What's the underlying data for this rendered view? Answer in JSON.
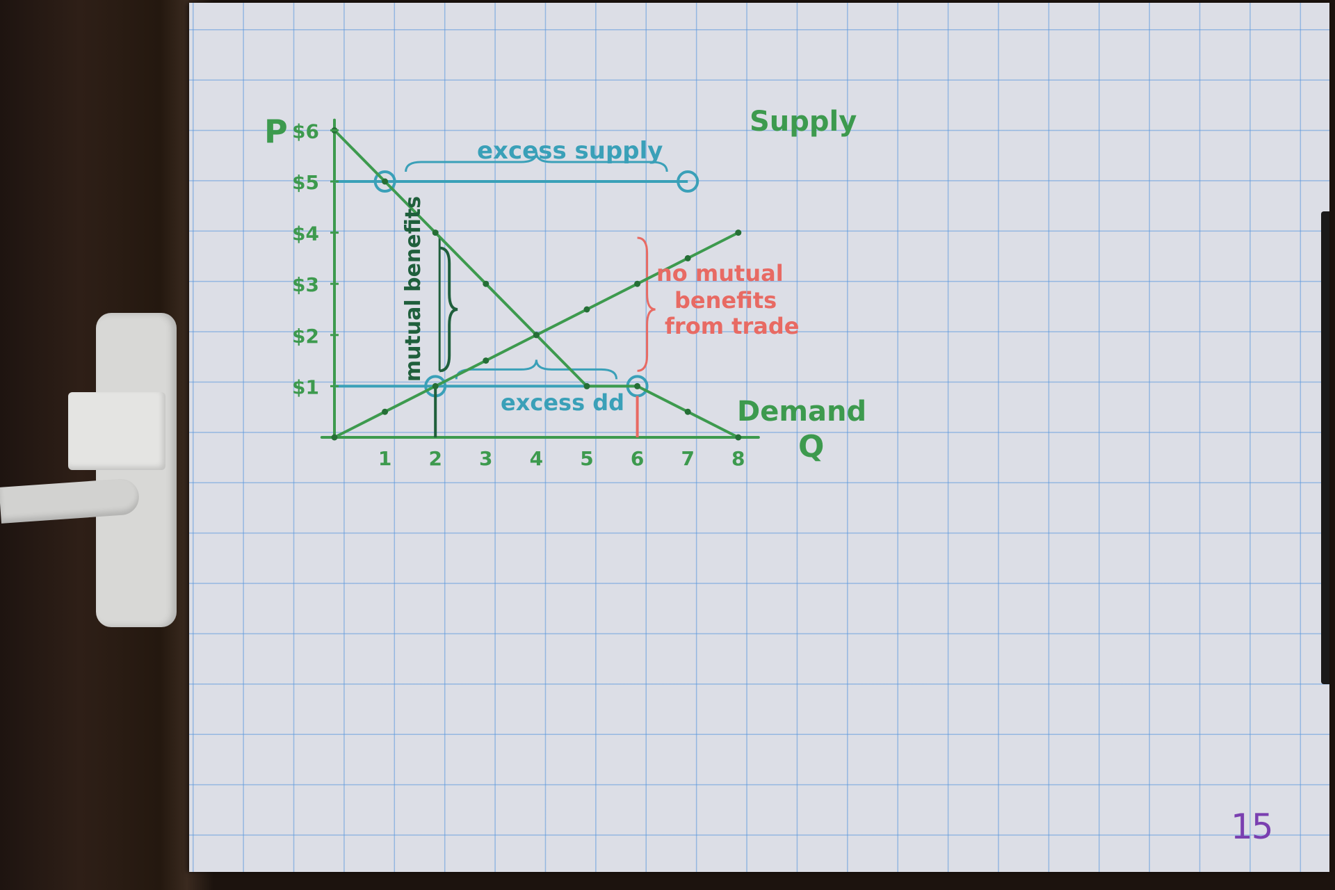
{
  "chart_data": {
    "type": "line",
    "x_axis": {
      "label": "Q",
      "ticks": [
        1,
        2,
        3,
        4,
        5,
        6,
        7,
        8
      ],
      "range": [
        0,
        8
      ]
    },
    "y_axis": {
      "label": "P",
      "ticks": [
        "$1",
        "$2",
        "$3",
        "$4",
        "$5",
        "$6"
      ],
      "range": [
        0,
        6
      ]
    },
    "series": [
      {
        "name": "Supply",
        "x": [
          0,
          1,
          2,
          3,
          4,
          5,
          6,
          7,
          8
        ],
        "y": [
          0,
          0.5,
          1,
          1.5,
          2,
          2.5,
          3,
          3.5,
          4.0
        ]
      },
      {
        "name": "Demand",
        "x": [
          0,
          1,
          2,
          3,
          4,
          5,
          6,
          7,
          8
        ],
        "y": [
          6,
          5,
          4,
          3,
          2,
          1,
          1,
          0.5,
          0
        ]
      }
    ],
    "price_lines": [
      {
        "price": 5,
        "q_from": 1,
        "q_to": 7,
        "label": "excess supply"
      },
      {
        "price": 1,
        "q_from": 2,
        "q_to": 6,
        "label": "excess dd"
      }
    ],
    "quantity_markers": [
      {
        "q": 2,
        "label": "mutual benefits",
        "color": "#1f5f3c"
      },
      {
        "q": 6,
        "label": "no mutual benefits from trade",
        "color": "#e86a63"
      }
    ],
    "equilibrium": {
      "q": 4,
      "p": 2
    },
    "colors": {
      "supply_demand": "#3d9a4e",
      "price_lines": "#3aa0b8",
      "mutual": "#1f5f3c",
      "no_mutual": "#e86a63",
      "grid": "#5896dc",
      "page_number": "#7a3fb0"
    }
  },
  "labels": {
    "supply": "Supply",
    "demand": "Demand",
    "excess_supply": "excess supply",
    "excess_dd": "excess dd",
    "mutual_benefits": "mutual benefits",
    "no_mutual_line1": "no mutual",
    "no_mutual_line2": "benefits",
    "no_mutual_line3": "from trade",
    "p_axis": "P",
    "q_axis": "Q"
  },
  "page_number": "15"
}
